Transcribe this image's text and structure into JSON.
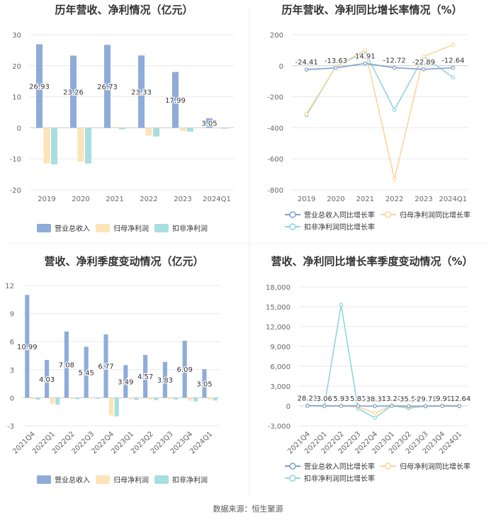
{
  "footer": "数据来源：恒生聚源",
  "colors": {
    "revenue": "#8facd9",
    "net_profit": "#fde3b7",
    "deducted": "#a7dfe0",
    "line_revenue": "#7d9fcf",
    "line_net": "#fbd59c",
    "line_deducted": "#8fd6dc",
    "grid": "#e8e8e8",
    "axis_text": "#666666"
  },
  "chart_data": [
    {
      "type": "bar",
      "title": "历年营收、净利情况（亿元）",
      "categories": [
        "2019",
        "2020",
        "2021",
        "2022",
        "2023",
        "2024Q1"
      ],
      "ylim": [
        -20,
        30
      ],
      "yticks": [
        -20,
        -10,
        0,
        10,
        20,
        30
      ],
      "legend_position": "bottom",
      "series": [
        {
          "name": "营业总收入",
          "values": [
            26.93,
            23.26,
            26.73,
            23.33,
            17.99,
            3.05
          ],
          "labels": [
            "26.93",
            "23.26",
            "26.73",
            "23.33",
            "17.99",
            "3.05"
          ]
        },
        {
          "name": "归母净利润",
          "values": [
            -11.5,
            -10.9,
            0.3,
            -2.5,
            -1.0,
            -0.2
          ]
        },
        {
          "name": "扣非净利润",
          "values": [
            -11.8,
            -11.5,
            -0.5,
            -2.8,
            -1.2,
            -0.3
          ]
        }
      ]
    },
    {
      "type": "line",
      "title": "历年营收、净利同比增长率情况（%）",
      "categories": [
        "2019",
        "2020",
        "2021",
        "2022",
        "2023",
        "2024Q1"
      ],
      "ylim": [
        -800,
        200
      ],
      "yticks": [
        -800,
        -600,
        -400,
        -200,
        0,
        200
      ],
      "legend_position": "bottom",
      "series": [
        {
          "name": "营业总收入同比增长率",
          "values": [
            -24.41,
            -13.63,
            14.91,
            -12.72,
            -22.89,
            -12.64
          ],
          "labels": [
            "-24.41",
            "-13.63",
            "14.91",
            "-12.72",
            "-22.89",
            "-12.64"
          ]
        },
        {
          "name": "归母净利润同比增长率",
          "values": [
            -310,
            -5,
            100,
            -730,
            60,
            135
          ]
        },
        {
          "name": "扣非净利润同比增长率",
          "values": [
            -320,
            -5,
            90,
            -285,
            60,
            -75
          ]
        }
      ]
    },
    {
      "type": "bar",
      "title": "营收、净利季度变动情况（亿元）",
      "categories": [
        "2021Q4",
        "2022Q1",
        "2022Q2",
        "2022Q3",
        "2022Q4",
        "2023Q1",
        "2023Q2",
        "2023Q3",
        "2023Q4",
        "2024Q1"
      ],
      "ylim": [
        -3,
        12
      ],
      "yticks": [
        -3,
        0,
        3,
        6,
        9,
        12
      ],
      "legend_position": "bottom",
      "series": [
        {
          "name": "营业总收入",
          "values": [
            10.99,
            4.03,
            7.08,
            5.45,
            6.77,
            3.49,
            4.57,
            3.83,
            6.09,
            3.05
          ],
          "labels": [
            "10.99",
            "4.03",
            "7.08",
            "5.45",
            "6.77",
            "3.49",
            "4.57",
            "3.83",
            "6.09",
            "3.05"
          ]
        },
        {
          "name": "归母净利润",
          "values": [
            -0.15,
            -0.65,
            -0.1,
            -0.05,
            -1.9,
            -0.2,
            -0.2,
            -0.15,
            -0.3,
            -0.2
          ]
        },
        {
          "name": "扣非净利润",
          "values": [
            -0.2,
            -0.75,
            -0.15,
            -0.1,
            -2.0,
            -0.25,
            -0.25,
            -0.2,
            -0.4,
            -0.3
          ]
        }
      ]
    },
    {
      "type": "line",
      "title": "营收、净利同比增长率季度变动情况（%）",
      "categories": [
        "2021Q4",
        "2022Q1",
        "2022Q2",
        "2022Q3",
        "2022Q4",
        "2023Q1",
        "2023Q2",
        "2023Q3",
        "2023Q4",
        "2024Q1"
      ],
      "ylim": [
        -3000,
        18000
      ],
      "yticks": [
        -3000,
        0,
        3000,
        6000,
        9000,
        12000,
        15000,
        18000
      ],
      "legend_position": "bottom",
      "series": [
        {
          "name": "营业总收入同比增长率",
          "values": [
            28.23,
            3.06,
            5.93,
            5.81,
            -38.37,
            13.21,
            -35.51,
            -29.7,
            -9.98,
            -12.64
          ],
          "labels": [
            "28.23",
            "3.06",
            "5.93",
            "5.81",
            "-38.37",
            "13.21",
            "-35.51",
            "-29.70",
            "-9.98",
            "-12.64"
          ]
        },
        {
          "name": "归母净利润同比增长率",
          "values": [
            60,
            10,
            20,
            -150,
            -1100,
            80,
            -200,
            -50,
            60,
            30
          ]
        },
        {
          "name": "扣非净利润同比增长率",
          "values": [
            60,
            -20,
            15300,
            -400,
            -1800,
            50,
            -350,
            -50,
            40,
            -60
          ]
        }
      ]
    }
  ]
}
